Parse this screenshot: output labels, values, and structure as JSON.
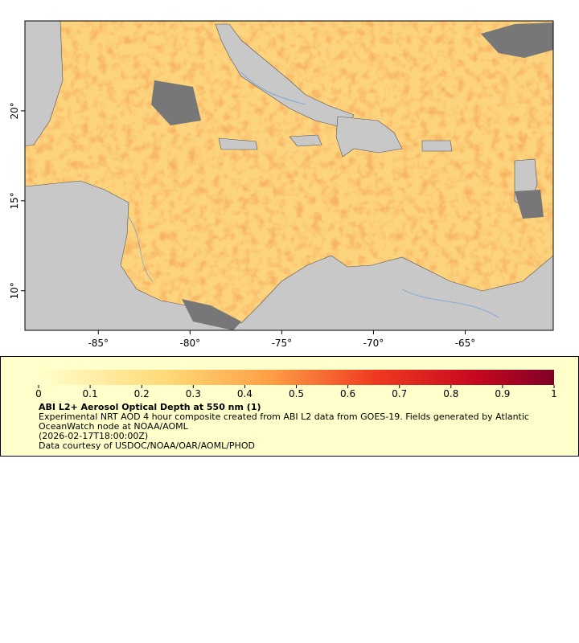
{
  "map": {
    "xlim": [
      -89,
      -60.2
    ],
    "ylim": [
      7.8,
      25
    ],
    "xticks": [
      {
        "value": -85,
        "label": "-85°"
      },
      {
        "value": -80,
        "label": "-80°"
      },
      {
        "value": -75,
        "label": "-75°"
      },
      {
        "value": -70,
        "label": "-70°"
      },
      {
        "value": -65,
        "label": "-65°"
      }
    ],
    "yticks": [
      {
        "value": 10,
        "label": "10°"
      },
      {
        "value": 15,
        "label": "15°"
      },
      {
        "value": 20,
        "label": "20°"
      }
    ]
  },
  "colorbar": {
    "lim": [
      0,
      1
    ],
    "ticks": [
      0,
      0.1,
      0.2,
      0.3,
      0.4,
      0.5,
      0.6,
      0.7,
      0.8,
      0.9,
      1
    ]
  },
  "legend": {
    "title": "ABI L2+ Aerosol Optical Depth at 550 nm (1)",
    "description": "Experimental NRT AOD 4 hour composite created from ABI L2 data from GOES-19. Fields generated by Atlantic OceanWatch node at NOAA/AOML",
    "time": "(2026-02-17T18:00:00Z)",
    "credit": "Data courtesy of USDOC/NOAA/OAR/AOML/PHOD"
  }
}
